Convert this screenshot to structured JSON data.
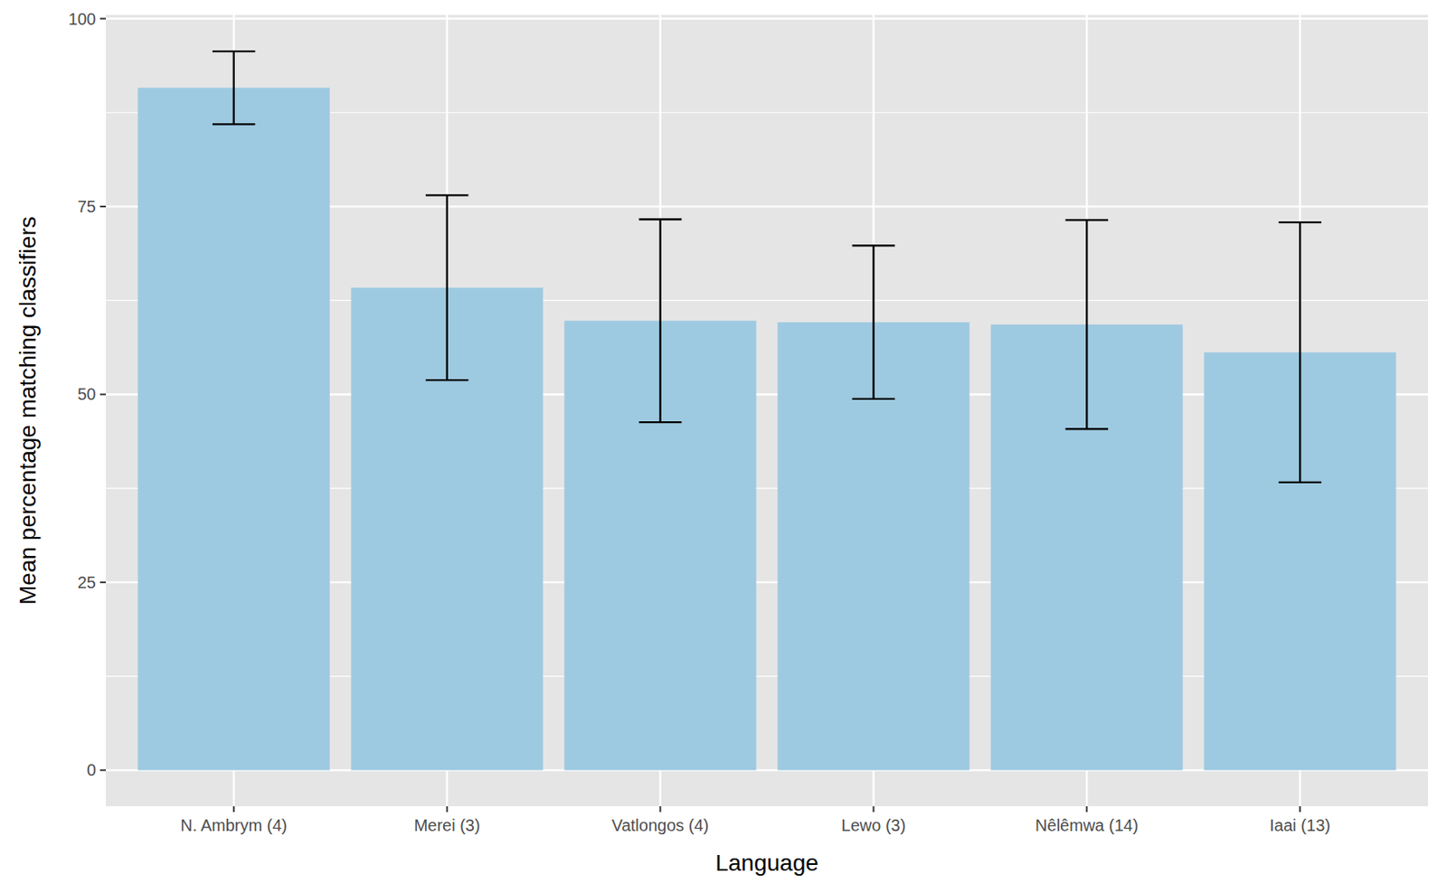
{
  "chart_data": {
    "type": "bar",
    "x_label": "Language",
    "y_label": "Mean percentage matching classifiers",
    "categories": [
      "N. Ambrym (4)",
      "Merei (3)",
      "Vatlongos (4)",
      "Lewo (3)",
      "Nêlêmwa (14)",
      "Iaai (13)"
    ],
    "values": [
      90.8,
      64.2,
      59.8,
      59.6,
      59.3,
      55.6
    ],
    "errors": [
      4.85,
      12.3,
      13.5,
      10.2,
      13.9,
      17.3
    ],
    "color": "#9ecae1",
    "ylim": [
      -4.8,
      100.5
    ],
    "yticks": [
      0,
      25,
      50,
      75,
      100
    ],
    "grid": true
  }
}
